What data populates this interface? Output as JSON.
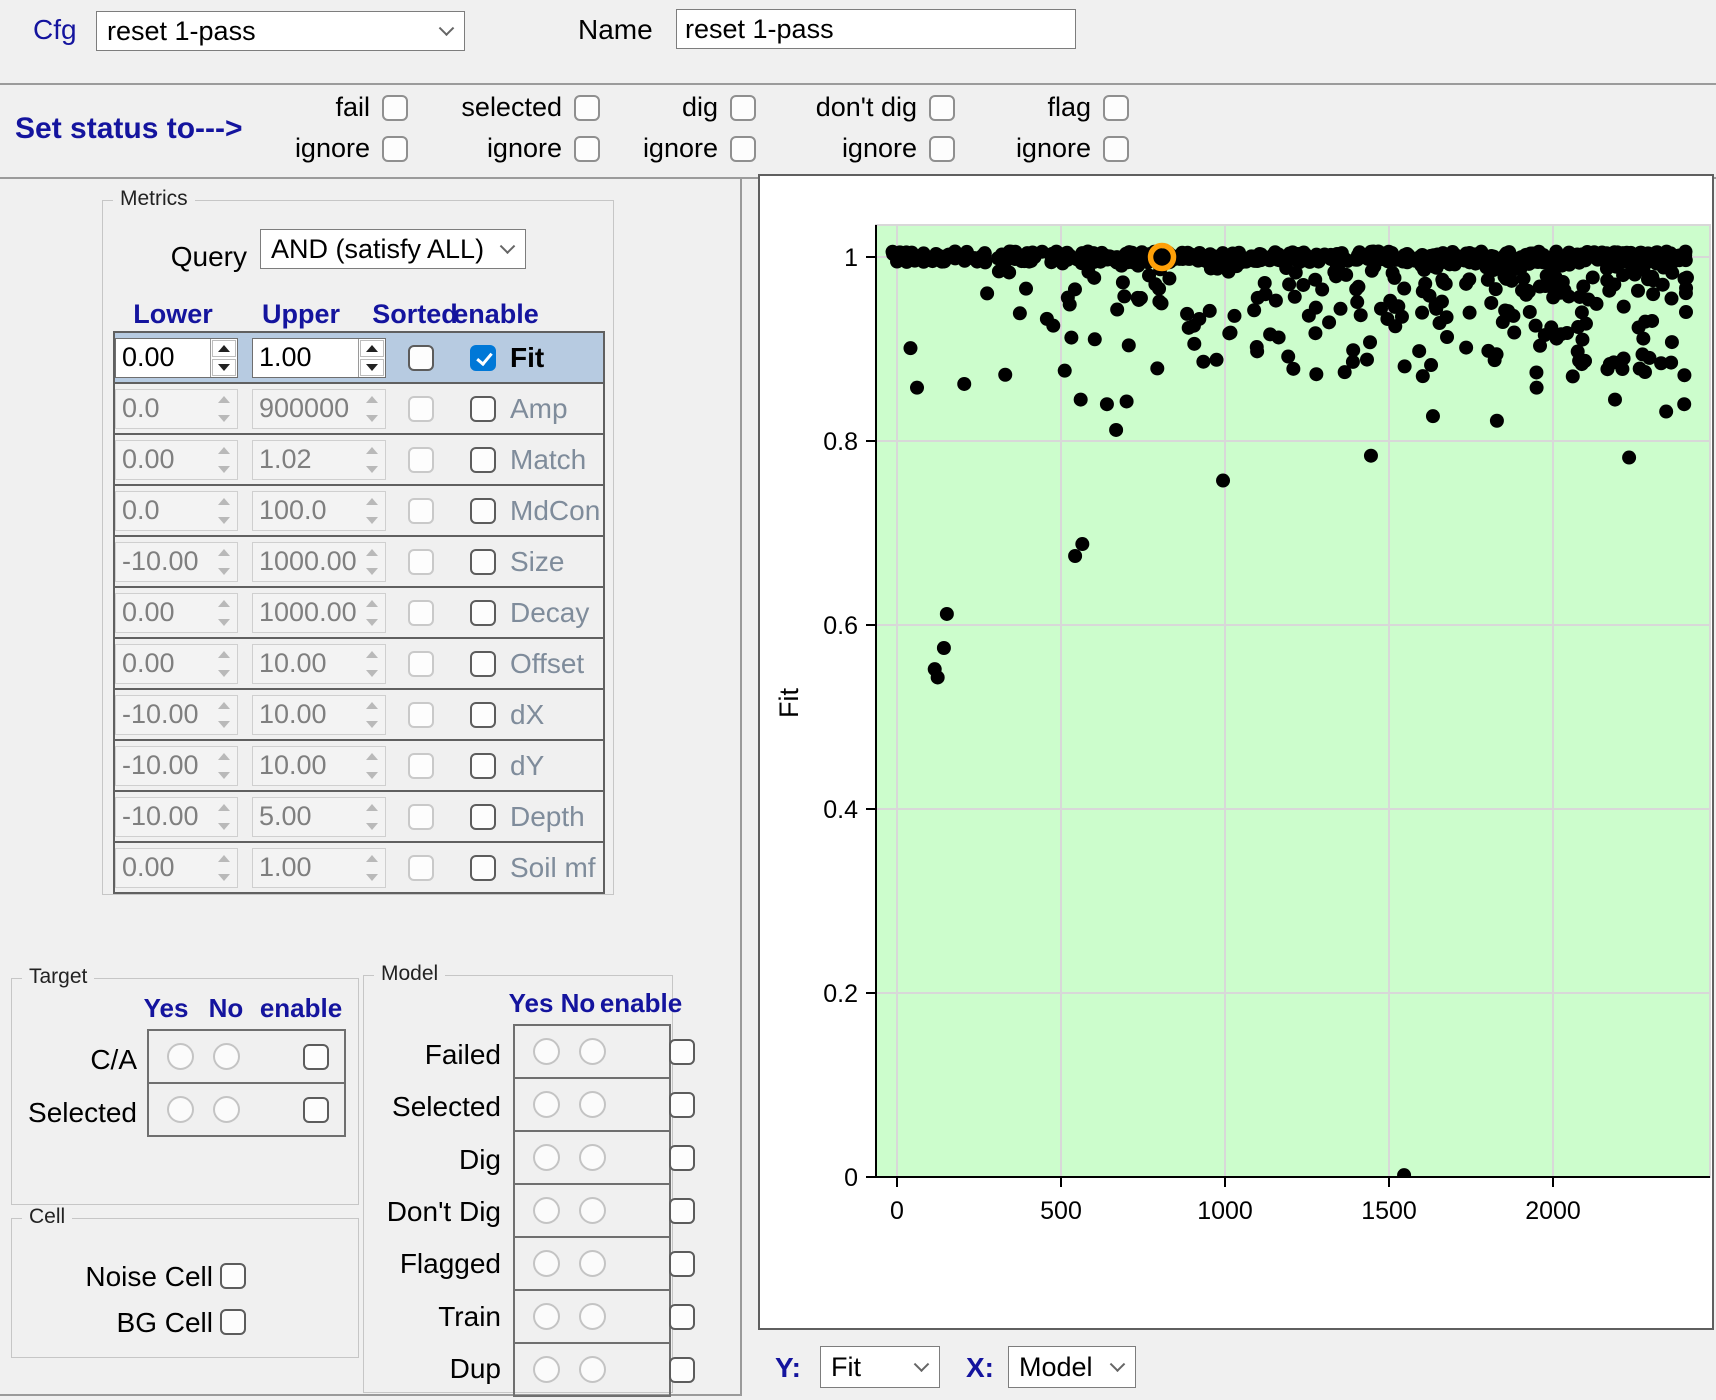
{
  "topbar": {
    "cfg_label": "Cfg",
    "cfg_value": "reset 1-pass",
    "name_label": "Name",
    "name_value": "reset 1-pass"
  },
  "status_bar": {
    "label": "Set status to--->",
    "groups": [
      {
        "top": "fail",
        "bottom": "ignore"
      },
      {
        "top": "selected",
        "bottom": "ignore"
      },
      {
        "top": "dig",
        "bottom": "ignore"
      },
      {
        "top": "don't dig",
        "bottom": "ignore"
      },
      {
        "top": "flag",
        "bottom": "ignore"
      }
    ]
  },
  "metrics": {
    "legend": "Metrics",
    "query_label": "Query",
    "query_value": "AND (satisfy ALL)",
    "headers": [
      "Lower",
      "Upper",
      "Sorted",
      "enable"
    ],
    "rows": [
      {
        "name": "Fit",
        "lower": "0.00",
        "upper": "1.00",
        "sorted": false,
        "enabled": true,
        "active": true
      },
      {
        "name": "Amp",
        "lower": "0.0",
        "upper": "900000",
        "sorted": false,
        "enabled": false,
        "active": false
      },
      {
        "name": "Match",
        "lower": "0.00",
        "upper": "1.02",
        "sorted": false,
        "enabled": false,
        "active": false
      },
      {
        "name": "MdCon",
        "lower": "0.0",
        "upper": "100.0",
        "sorted": false,
        "enabled": false,
        "active": false
      },
      {
        "name": "Size",
        "lower": "-10.00",
        "upper": "1000.00",
        "sorted": false,
        "enabled": false,
        "active": false
      },
      {
        "name": "Decay",
        "lower": "0.00",
        "upper": "1000.00",
        "sorted": false,
        "enabled": false,
        "active": false
      },
      {
        "name": "Offset",
        "lower": "0.00",
        "upper": "10.00",
        "sorted": false,
        "enabled": false,
        "active": false
      },
      {
        "name": "dX",
        "lower": "-10.00",
        "upper": "10.00",
        "sorted": false,
        "enabled": false,
        "active": false
      },
      {
        "name": "dY",
        "lower": "-10.00",
        "upper": "10.00",
        "sorted": false,
        "enabled": false,
        "active": false
      },
      {
        "name": "Depth",
        "lower": "-10.00",
        "upper": "5.00",
        "sorted": false,
        "enabled": false,
        "active": false
      },
      {
        "name": "Soil mf",
        "lower": "0.00",
        "upper": "1.00",
        "sorted": false,
        "enabled": false,
        "active": false
      }
    ]
  },
  "target": {
    "legend": "Target",
    "headers": [
      "Yes",
      "No",
      "enable"
    ],
    "rows": [
      {
        "label": "C/A"
      },
      {
        "label": "Selected"
      }
    ]
  },
  "model": {
    "legend": "Model",
    "headers": [
      "Yes",
      "No",
      "enable"
    ],
    "rows": [
      {
        "label": "Failed"
      },
      {
        "label": "Selected"
      },
      {
        "label": "Dig"
      },
      {
        "label": "Don't Dig"
      },
      {
        "label": "Flagged"
      },
      {
        "label": "Train"
      },
      {
        "label": "Dup"
      }
    ]
  },
  "cell": {
    "legend": "Cell",
    "rows": [
      {
        "label": "Noise Cell"
      },
      {
        "label": "BG Cell"
      }
    ]
  },
  "axis_controls": {
    "y_label": "Y:",
    "y_value": "Fit",
    "x_label": "X:",
    "x_value": "Model"
  },
  "colors": {
    "navy": "#14149e",
    "check_blue": "#0078d7",
    "row_highlight": "#b7cbe1",
    "plot_bg": "#ccfdcc",
    "grid": "#d8d8d8",
    "point": "#000000",
    "highlight_orange": "#ffa008"
  },
  "chart_data": {
    "type": "scatter",
    "xlabel": "Model",
    "ylabel": "Fit",
    "x_ticks": [
      0,
      500,
      1000,
      1500,
      2000
    ],
    "x_tick_labels": [
      "0",
      "500",
      "1000",
      "1500",
      "2000"
    ],
    "y_ticks": [
      0,
      0.2,
      0.4,
      0.6,
      0.8,
      1
    ],
    "y_tick_labels": [
      "0",
      "0.2",
      "0.4",
      "0.6",
      "0.8",
      "1"
    ],
    "xlim": [
      -64,
      2490
    ],
    "ylim": [
      0,
      1.035
    ],
    "grid": true,
    "legend_position": "none",
    "point_radius_px": 7,
    "highlight_marker": {
      "x": 808,
      "y": 1.0,
      "shape": "open-circle"
    },
    "dense_band": {
      "y_center": 1.0,
      "y_jitter": 0.006,
      "x_min": -20,
      "x_max": 2410,
      "count": 420
    },
    "upper_cloud": {
      "x_min": -20,
      "x_max": 2410,
      "x_right_bias_pow": 0.55,
      "y_top": 0.998,
      "y_spread": 0.128,
      "y_pow": 2.4,
      "count": 330
    },
    "outlier_points": [
      [
        61,
        0.858
      ],
      [
        115,
        0.552
      ],
      [
        124,
        0.543
      ],
      [
        143,
        0.575
      ],
      [
        152,
        0.612
      ],
      [
        205,
        0.862
      ],
      [
        330,
        0.872
      ],
      [
        543,
        0.675
      ],
      [
        565,
        0.688
      ],
      [
        560,
        0.845
      ],
      [
        640,
        0.84
      ],
      [
        668,
        0.812
      ],
      [
        700,
        0.843
      ],
      [
        994,
        0.757
      ],
      [
        1445,
        0.784
      ],
      [
        1546,
        0.002
      ],
      [
        1634,
        0.827
      ],
      [
        1829,
        0.822
      ],
      [
        1950,
        0.858
      ],
      [
        2189,
        0.845
      ],
      [
        2232,
        0.782
      ],
      [
        2345,
        0.832
      ],
      [
        2400,
        0.84
      ]
    ],
    "seed": 1337
  }
}
